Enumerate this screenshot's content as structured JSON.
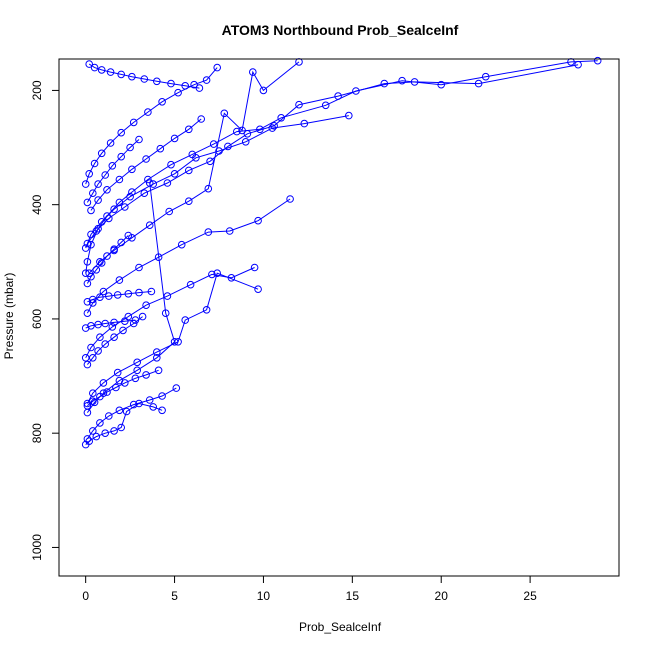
{
  "chart_data": {
    "type": "line",
    "title": "ATOM3 Northbound Prob_SealceInf",
    "xlabel": "Prob_SealceInf",
    "ylabel": "Pressure (mbar)",
    "xlim": [
      -1.5,
      30
    ],
    "ylim": [
      1050,
      145
    ],
    "y_reversed": true,
    "xticks": [
      0,
      5,
      10,
      15,
      20,
      25
    ],
    "yticks": [
      200,
      400,
      600,
      800,
      1000
    ],
    "grid": false,
    "legend": "none",
    "series_color": "#0000ff",
    "marker": "open-circle",
    "series": [
      {
        "x": [
          28.8,
          27.3,
          22.5,
          20.0,
          17.8,
          15.2,
          13.5,
          11.0,
          9.8,
          8.5,
          7.2,
          6.0,
          4.8,
          3.5,
          2.6,
          1.9,
          1.2,
          0.7,
          0.3,
          0.1,
          0.0
        ],
        "y": [
          148,
          150,
          176,
          190,
          183,
          201,
          226,
          248,
          268,
          272,
          294,
          312,
          330,
          356,
          378,
          396,
          420,
          442,
          470,
          500,
          520
        ]
      },
      {
        "x": [
          27.7,
          22.1,
          18.5,
          16.8,
          14.2,
          12.0,
          10.6,
          9.1,
          8.0,
          7.0,
          5.8,
          4.6,
          3.3,
          2.2,
          1.3,
          0.6,
          0.1
        ],
        "y": [
          155,
          188,
          185,
          188,
          210,
          225,
          262,
          276,
          298,
          324,
          340,
          362,
          380,
          404,
          424,
          446,
          468
        ]
      },
      {
        "x": [
          14.8,
          12.3,
          10.5,
          9.0,
          7.5,
          6.2,
          5.0,
          3.8,
          2.5,
          1.6,
          0.9,
          0.3,
          0.0
        ],
        "y": [
          244,
          258,
          266,
          290,
          306,
          318,
          346,
          364,
          386,
          408,
          430,
          452,
          476
        ]
      },
      {
        "x": [
          11.5,
          9.7,
          8.1,
          6.9,
          5.4,
          4.1,
          3.0,
          1.9,
          1.0,
          0.4,
          0.1
        ],
        "y": [
          390,
          428,
          446,
          448,
          470,
          492,
          510,
          532,
          552,
          572,
          590
        ]
      },
      {
        "x": [
          9.5,
          8.2,
          7.1,
          5.9,
          4.6,
          3.4,
          2.4,
          1.5,
          0.8,
          0.3,
          0.0
        ],
        "y": [
          510,
          528,
          522,
          540,
          560,
          576,
          596,
          614,
          632,
          650,
          668
        ]
      },
      {
        "x": [
          9.7,
          7.4,
          6.8,
          5.6,
          5.2,
          4.0,
          2.9,
          1.8,
          1.0,
          0.4,
          0.1
        ],
        "y": [
          548,
          520,
          584,
          602,
          640,
          658,
          676,
          694,
          712,
          730,
          748
        ]
      },
      {
        "x": [
          5.1,
          4.3,
          3.6,
          2.7,
          1.9,
          1.3,
          0.8,
          0.4,
          0.1
        ],
        "y": [
          721,
          735,
          742,
          750,
          760,
          770,
          782,
          796,
          810
        ]
      },
      {
        "x": [
          4.3,
          3.8,
          3.0,
          2.3,
          2.0,
          1.6,
          1.1,
          0.6,
          0.2,
          0.0
        ],
        "y": [
          760,
          754,
          748,
          762,
          790,
          796,
          800,
          806,
          814,
          820
        ]
      },
      {
        "x": [
          3.6,
          4.5,
          5.0,
          4.0,
          2.9,
          1.9,
          1.0,
          0.5,
          0.1
        ],
        "y": [
          362,
          590,
          640,
          668,
          690,
          708,
          730,
          746,
          764
        ]
      },
      {
        "x": [
          12.0,
          10.0,
          9.4,
          8.8,
          7.8,
          6.9,
          5.8,
          4.7,
          3.6,
          2.6,
          1.6,
          0.8,
          0.2
        ],
        "y": [
          150,
          200,
          168,
          270,
          240,
          372,
          394,
          412,
          436,
          458,
          480,
          500,
          520
        ]
      },
      {
        "x": [
          7.4,
          6.8,
          6.1,
          5.2,
          4.3,
          3.5,
          2.7,
          2.0,
          1.4,
          0.9,
          0.5,
          0.2,
          0.0
        ],
        "y": [
          160,
          182,
          190,
          204,
          220,
          238,
          256,
          274,
          292,
          310,
          328,
          346,
          364
        ]
      },
      {
        "x": [
          6.5,
          5.8,
          5.0,
          4.2,
          3.4,
          2.6,
          1.9,
          1.2,
          0.7,
          0.3
        ],
        "y": [
          250,
          268,
          284,
          302,
          320,
          338,
          356,
          374,
          392,
          410
        ]
      },
      {
        "x": [
          3.2,
          2.7,
          2.1,
          1.6,
          1.1,
          0.7,
          0.4,
          0.1
        ],
        "y": [
          596,
          608,
          620,
          632,
          644,
          656,
          668,
          680
        ]
      },
      {
        "x": [
          4.1,
          3.4,
          2.8,
          2.2,
          1.7,
          1.2,
          0.8,
          0.4,
          0.1
        ],
        "y": [
          690,
          698,
          704,
          712,
          720,
          728,
          736,
          744,
          752
        ]
      },
      {
        "x": [
          3.0,
          2.5,
          2.0,
          1.5,
          1.1,
          0.7,
          0.4,
          0.1
        ],
        "y": [
          286,
          300,
          316,
          332,
          348,
          364,
          380,
          396
        ]
      },
      {
        "x": [
          2.4,
          2.0,
          1.6,
          1.2,
          0.9,
          0.6,
          0.3,
          0.1
        ],
        "y": [
          454,
          466,
          478,
          490,
          502,
          514,
          526,
          538
        ]
      },
      {
        "x": [
          0.2,
          0.5,
          0.9,
          1.4,
          2.0,
          2.6,
          3.3,
          4.0,
          4.8,
          5.6,
          6.4
        ],
        "y": [
          154,
          160,
          164,
          168,
          172,
          176,
          180,
          184,
          188,
          192,
          196
        ]
      },
      {
        "x": [
          0.1,
          0.4,
          0.8,
          1.3,
          1.8,
          2.4,
          3.0,
          3.7
        ],
        "y": [
          570,
          566,
          562,
          560,
          558,
          556,
          554,
          552
        ]
      },
      {
        "x": [
          0.0,
          0.3,
          0.7,
          1.1,
          1.6,
          2.2,
          2.8
        ],
        "y": [
          616,
          612,
          610,
          608,
          606,
          604,
          602
        ]
      }
    ]
  }
}
